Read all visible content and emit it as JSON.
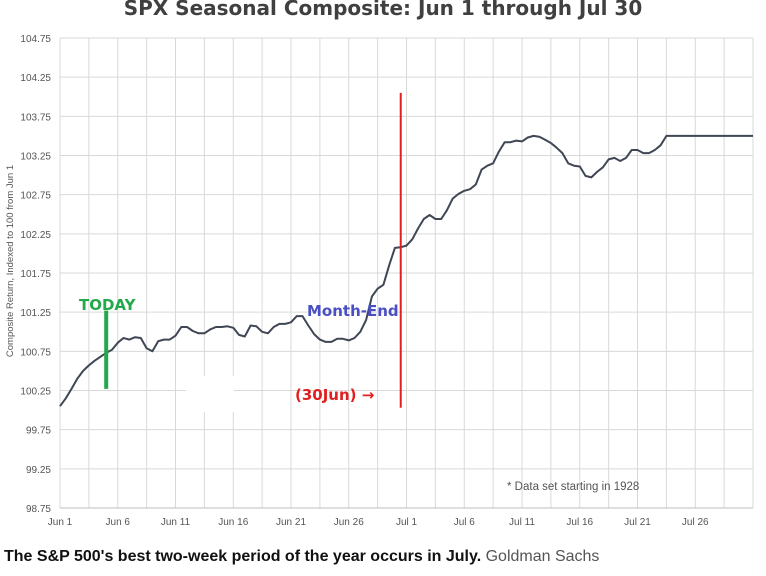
{
  "chart_data": {
    "type": "line",
    "title": "SPX Seasonal Composite: Jun 1 through Jul 30",
    "ylabel": "Composite Return, Indexed to 100 from Jun 1",
    "xlabel": "",
    "ylim": [
      98.75,
      104.75
    ],
    "yticks": [
      98.75,
      99.25,
      99.75,
      100.25,
      100.75,
      101.25,
      101.75,
      102.25,
      102.75,
      103.25,
      103.75,
      104.25,
      104.75
    ],
    "ytick_labels": [
      "98.75",
      "99.25",
      "99.75",
      "100.25",
      "100.75",
      "101.25",
      "101.75",
      "102.25",
      "102.75",
      "103.25",
      "103.75",
      "104.25",
      "104.75"
    ],
    "xlim": [
      0,
      60
    ],
    "xticks": [
      0,
      5,
      10,
      15,
      20,
      25,
      30,
      35,
      40,
      45,
      50,
      55
    ],
    "xtick_labels": [
      "Jun 1",
      "Jun 6",
      "Jun 11",
      "Jun 16",
      "Jun 21",
      "Jun 26",
      "Jul 1",
      "Jul 6",
      "Jul 11",
      "Jul 16",
      "Jul 21",
      "Jul 26"
    ],
    "vgrid_x": [
      0,
      2.5,
      5,
      7.5,
      10,
      12.5,
      15,
      17.5,
      20,
      22.5,
      25,
      27.5,
      30,
      32.5,
      35,
      37.5,
      40,
      42.5,
      45,
      47.5,
      50,
      52.5,
      55,
      57.5,
      60
    ],
    "series": [
      {
        "name": "SPX Seasonal Composite",
        "color": "#3f4654",
        "x": [
          0,
          0.5,
          1,
          1.5,
          2,
          2.5,
          3,
          3.5,
          4,
          4.5,
          5,
          5.5,
          6,
          6.5,
          7,
          7.5,
          8,
          8.5,
          9,
          9.5,
          10,
          10.5,
          11,
          11.5,
          12,
          12.5,
          13,
          13.5,
          14,
          14.5,
          15,
          15.5,
          16,
          16.5,
          17,
          17.5,
          18,
          18.5,
          19,
          19.5,
          20,
          20.5,
          21,
          21.5,
          22,
          22.5,
          23,
          23.5,
          24,
          24.5,
          25,
          25.5,
          26,
          26.5,
          27,
          27.5,
          28,
          28.5,
          29,
          29.5,
          30,
          30.5,
          31,
          31.5,
          32,
          32.5,
          33,
          33.5,
          34,
          34.5,
          35,
          35.5,
          36,
          36.5,
          37,
          37.5,
          38,
          38.5,
          39,
          39.5,
          40,
          40.5,
          41,
          41.5,
          42,
          42.5,
          43,
          43.5,
          44,
          44.5,
          45,
          45.5,
          46,
          46.5,
          47,
          47.5,
          48,
          48.5,
          49,
          49.5,
          50,
          50.5,
          51,
          51.5,
          52,
          52.5,
          53,
          53.5,
          54,
          54.5,
          55,
          55.5,
          56,
          56.5,
          57,
          57.5,
          58,
          58.5,
          59,
          59.5,
          60
        ],
        "values": [
          100.05,
          100.15,
          100.27,
          100.4,
          100.5,
          100.57,
          100.63,
          100.68,
          100.73,
          100.77,
          100.86,
          100.92,
          100.9,
          100.93,
          100.92,
          100.79,
          100.75,
          100.88,
          100.9,
          100.9,
          100.95,
          101.06,
          101.06,
          101.01,
          100.98,
          100.98,
          101.03,
          101.06,
          101.06,
          101.07,
          101.05,
          100.96,
          100.94,
          101.08,
          101.07,
          101.0,
          100.98,
          101.06,
          101.1,
          101.1,
          101.12,
          101.2,
          101.2,
          101.08,
          100.97,
          100.9,
          100.87,
          100.87,
          100.91,
          100.91,
          100.89,
          100.92,
          101.0,
          101.15,
          101.45,
          101.55,
          101.6,
          101.85,
          102.07,
          102.08,
          102.1,
          102.18,
          102.32,
          102.44,
          102.49,
          102.44,
          102.44,
          102.55,
          102.7,
          102.76,
          102.8,
          102.82,
          102.88,
          103.07,
          103.12,
          103.15,
          103.3,
          103.42,
          103.42,
          103.44,
          103.43,
          103.48,
          103.5,
          103.49,
          103.45,
          103.41,
          103.35,
          103.28,
          103.15,
          103.12,
          103.11,
          102.99,
          102.97,
          103.04,
          103.1,
          103.2,
          103.22,
          103.18,
          103.22,
          103.32,
          103.32,
          103.28,
          103.28,
          103.32,
          103.38,
          103.5,
          103.5,
          103.5,
          103.5,
          103.5,
          103.5,
          103.5,
          103.5,
          103.5,
          103.5,
          103.5,
          103.5,
          103.5,
          103.5,
          103.5,
          103.5
        ]
      }
    ],
    "annotations": {
      "today_label": "TODAY",
      "today_x": 4,
      "today_range": [
        100.27,
        101.27
      ],
      "month_end_label": "Month-End",
      "month_end_x": 29.5,
      "month_end_range": [
        100.03,
        104.05
      ],
      "arrow_label": "(30Jun) →",
      "footnote": "* Data set starting in 1928"
    },
    "colors": {
      "line": "#3f4654",
      "today": "#22a94c",
      "month_end_text": "#4b4fc4",
      "month_end_line": "#e02020",
      "grid": "#d9d9d9",
      "axis_text": "#555555"
    }
  },
  "caption": {
    "bold": "The S&P 500's best two-week period of the year occurs in July.",
    "source": "Goldman Sachs"
  }
}
